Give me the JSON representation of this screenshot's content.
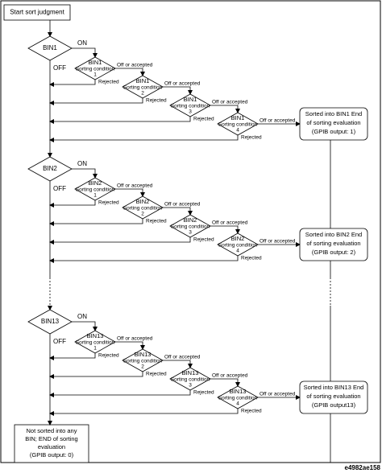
{
  "start": "Start sort judgment",
  "groups": [
    {
      "bin": "BIN1",
      "on": "ON",
      "off": "OFF",
      "conditions": [
        {
          "bin": "BIN1",
          "label": "Sorting condition",
          "number": "1",
          "pass": "Off or accepted",
          "fail": "Rejected"
        },
        {
          "bin": "BIN1",
          "label": "Sorting condition",
          "number": "2",
          "pass": "Off or accepted",
          "fail": "Rejected"
        },
        {
          "bin": "BIN1",
          "label": "Sorting condition",
          "number": "3",
          "pass": "Off or accepted",
          "fail": "Rejected"
        },
        {
          "bin": "BIN1",
          "label": "Sorting condition",
          "number": "4",
          "pass": "Off or accepted",
          "fail": "Rejected"
        }
      ],
      "result": [
        "Sorted into BIN1 End",
        "of sorting evaluation",
        "(GPIB output: 1)"
      ]
    },
    {
      "bin": "BIN2",
      "on": "ON",
      "off": "OFF",
      "conditions": [
        {
          "bin": "BIN2",
          "label": "Sorting condition",
          "number": "1",
          "pass": "Off or accepted",
          "fail": "Rejected"
        },
        {
          "bin": "BIN2",
          "label": "Sorting condition",
          "number": "2",
          "pass": "Off or accepted",
          "fail": "Rejected"
        },
        {
          "bin": "BIN2",
          "label": "Sorting condition",
          "number": "3",
          "pass": "Off or accepted",
          "fail": "Rejected"
        },
        {
          "bin": "BIN2",
          "label": "Sorting condition",
          "number": "4",
          "pass": "Off or accepted",
          "fail": "Rejected"
        }
      ],
      "result": [
        "Sorted into BIN2 End",
        "of sorting evaluation",
        "(GPIB output: 2)"
      ]
    },
    {
      "bin": "BIN13",
      "on": "ON",
      "off": "OFF",
      "conditions": [
        {
          "bin": "BIN13",
          "label": "Sorting condition",
          "number": "1",
          "pass": "Off or accepted",
          "fail": "Rejected"
        },
        {
          "bin": "BIN13",
          "label": "Sorting condition",
          "number": "2",
          "pass": "Off or accepted",
          "fail": "Rejected"
        },
        {
          "bin": "BIN13",
          "label": "Sorting condition",
          "number": "3",
          "pass": "Off or accepted",
          "fail": "Rejected"
        },
        {
          "bin": "BIN13",
          "label": "Sorting condition",
          "number": "4",
          "pass": "Off or accepted",
          "fail": "Rejected"
        }
      ],
      "result": [
        "Sorted into BIN13 End",
        "of sorting evaluation",
        "(GPIB output13)"
      ]
    }
  ],
  "final": [
    "Not sorted into any",
    "BIN; END of sorting",
    "evaluation",
    "(GPIB output: 0)"
  ],
  "figure_id": "e4982ae158"
}
